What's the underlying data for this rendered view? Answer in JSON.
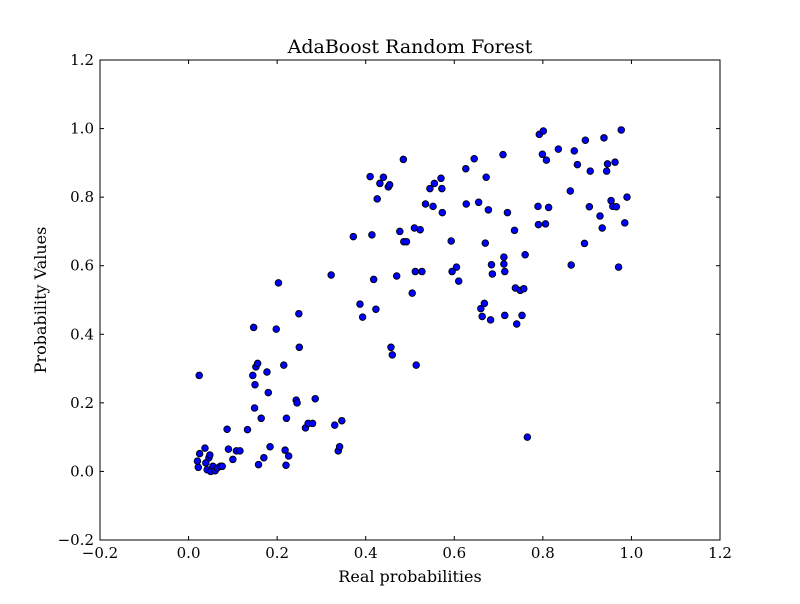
{
  "chart_data": {
    "type": "scatter",
    "title": "AdaBoost Random Forest",
    "xlabel": "Real probabilities",
    "ylabel": "Probability Values",
    "xlim": [
      -0.2,
      1.2
    ],
    "ylim": [
      -0.2,
      1.2
    ],
    "xticks": [
      -0.2,
      0.0,
      0.2,
      0.4,
      0.6,
      0.8,
      1.0,
      1.2
    ],
    "yticks": [
      -0.2,
      0.0,
      0.2,
      0.4,
      0.6,
      0.8,
      1.0,
      1.2
    ],
    "xtick_labels": [
      "−0.2",
      "0.0",
      "0.2",
      "0.4",
      "0.6",
      "0.8",
      "1.0",
      "1.2"
    ],
    "ytick_labels": [
      "−0.2",
      "0.0",
      "0.2",
      "0.4",
      "0.6",
      "0.8",
      "1.0",
      "1.2"
    ],
    "grid": false,
    "marker_color": "#0000ff",
    "marker_edge_color": "#000000",
    "points": [
      [
        0.024,
        0.28
      ],
      [
        0.02,
        0.03
      ],
      [
        0.022,
        0.012
      ],
      [
        0.025,
        0.052
      ],
      [
        0.037,
        0.068
      ],
      [
        0.039,
        0.025
      ],
      [
        0.042,
        0.005
      ],
      [
        0.046,
        0.04
      ],
      [
        0.048,
        0.048
      ],
      [
        0.05,
        0.0
      ],
      [
        0.055,
        0.015
      ],
      [
        0.06,
        0.002
      ],
      [
        0.065,
        0.01
      ],
      [
        0.072,
        0.015
      ],
      [
        0.076,
        0.015
      ],
      [
        0.087,
        0.123
      ],
      [
        0.09,
        0.065
      ],
      [
        0.1,
        0.035
      ],
      [
        0.108,
        0.06
      ],
      [
        0.116,
        0.06
      ],
      [
        0.133,
        0.122
      ],
      [
        0.145,
        0.28
      ],
      [
        0.147,
        0.42
      ],
      [
        0.149,
        0.185
      ],
      [
        0.15,
        0.253
      ],
      [
        0.152,
        0.305
      ],
      [
        0.156,
        0.315
      ],
      [
        0.158,
        0.02
      ],
      [
        0.164,
        0.155
      ],
      [
        0.17,
        0.04
      ],
      [
        0.177,
        0.29
      ],
      [
        0.18,
        0.23
      ],
      [
        0.184,
        0.072
      ],
      [
        0.198,
        0.415
      ],
      [
        0.203,
        0.55
      ],
      [
        0.215,
        0.31
      ],
      [
        0.218,
        0.062
      ],
      [
        0.22,
        0.018
      ],
      [
        0.221,
        0.155
      ],
      [
        0.226,
        0.045
      ],
      [
        0.243,
        0.208
      ],
      [
        0.245,
        0.2
      ],
      [
        0.249,
        0.46
      ],
      [
        0.25,
        0.362
      ],
      [
        0.264,
        0.127
      ],
      [
        0.27,
        0.14
      ],
      [
        0.28,
        0.14
      ],
      [
        0.286,
        0.212
      ],
      [
        0.322,
        0.573
      ],
      [
        0.33,
        0.135
      ],
      [
        0.338,
        0.06
      ],
      [
        0.341,
        0.072
      ],
      [
        0.346,
        0.148
      ],
      [
        0.372,
        0.685
      ],
      [
        0.387,
        0.488
      ],
      [
        0.393,
        0.45
      ],
      [
        0.41,
        0.86
      ],
      [
        0.414,
        0.69
      ],
      [
        0.418,
        0.56
      ],
      [
        0.423,
        0.473
      ],
      [
        0.426,
        0.795
      ],
      [
        0.432,
        0.84
      ],
      [
        0.44,
        0.858
      ],
      [
        0.451,
        0.83
      ],
      [
        0.454,
        0.836
      ],
      [
        0.457,
        0.362
      ],
      [
        0.46,
        0.34
      ],
      [
        0.47,
        0.57
      ],
      [
        0.477,
        0.7
      ],
      [
        0.485,
        0.91
      ],
      [
        0.486,
        0.67
      ],
      [
        0.492,
        0.67
      ],
      [
        0.505,
        0.52
      ],
      [
        0.51,
        0.71
      ],
      [
        0.512,
        0.583
      ],
      [
        0.514,
        0.31
      ],
      [
        0.523,
        0.705
      ],
      [
        0.527,
        0.583
      ],
      [
        0.535,
        0.78
      ],
      [
        0.545,
        0.825
      ],
      [
        0.552,
        0.773
      ],
      [
        0.555,
        0.84
      ],
      [
        0.57,
        0.855
      ],
      [
        0.572,
        0.825
      ],
      [
        0.573,
        0.755
      ],
      [
        0.593,
        0.672
      ],
      [
        0.595,
        0.583
      ],
      [
        0.605,
        0.596
      ],
      [
        0.61,
        0.555
      ],
      [
        0.626,
        0.883
      ],
      [
        0.627,
        0.78
      ],
      [
        0.645,
        0.912
      ],
      [
        0.655,
        0.785
      ],
      [
        0.66,
        0.475
      ],
      [
        0.663,
        0.452
      ],
      [
        0.668,
        0.49
      ],
      [
        0.67,
        0.666
      ],
      [
        0.672,
        0.858
      ],
      [
        0.677,
        0.763
      ],
      [
        0.682,
        0.442
      ],
      [
        0.684,
        0.603
      ],
      [
        0.686,
        0.576
      ],
      [
        0.71,
        0.924
      ],
      [
        0.712,
        0.625
      ],
      [
        0.712,
        0.605
      ],
      [
        0.714,
        0.583
      ],
      [
        0.714,
        0.455
      ],
      [
        0.72,
        0.755
      ],
      [
        0.736,
        0.703
      ],
      [
        0.738,
        0.535
      ],
      [
        0.741,
        0.43
      ],
      [
        0.749,
        0.528
      ],
      [
        0.753,
        0.455
      ],
      [
        0.757,
        0.533
      ],
      [
        0.76,
        0.632
      ],
      [
        0.765,
        0.1
      ],
      [
        0.789,
        0.773
      ],
      [
        0.79,
        0.72
      ],
      [
        0.792,
        0.983
      ],
      [
        0.799,
        0.925
      ],
      [
        0.801,
        0.993
      ],
      [
        0.806,
        0.722
      ],
      [
        0.808,
        0.908
      ],
      [
        0.813,
        0.77
      ],
      [
        0.835,
        0.94
      ],
      [
        0.862,
        0.818
      ],
      [
        0.864,
        0.602
      ],
      [
        0.871,
        0.935
      ],
      [
        0.878,
        0.895
      ],
      [
        0.894,
        0.665
      ],
      [
        0.896,
        0.966
      ],
      [
        0.905,
        0.772
      ],
      [
        0.907,
        0.876
      ],
      [
        0.929,
        0.745
      ],
      [
        0.934,
        0.71
      ],
      [
        0.938,
        0.973
      ],
      [
        0.944,
        0.876
      ],
      [
        0.946,
        0.897
      ],
      [
        0.954,
        0.79
      ],
      [
        0.958,
        0.773
      ],
      [
        0.963,
        0.902
      ],
      [
        0.966,
        0.772
      ],
      [
        0.971,
        0.596
      ],
      [
        0.977,
        0.996
      ],
      [
        0.985,
        0.725
      ],
      [
        0.99,
        0.8
      ]
    ]
  }
}
